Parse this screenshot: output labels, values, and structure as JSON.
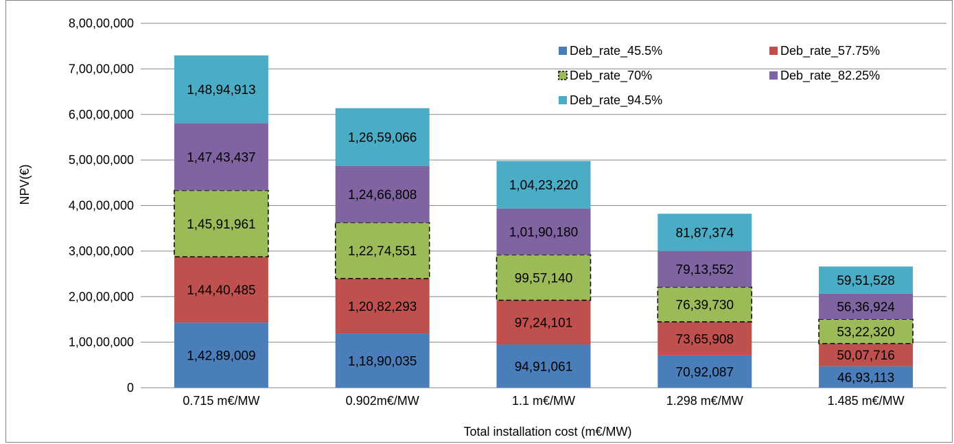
{
  "chart_data": {
    "type": "bar",
    "stacked": true,
    "title": "",
    "xlabel": "Total installation cost (m€/MW)",
    "ylabel": "NPV(€)",
    "ylim": [
      0,
      80000000
    ],
    "y_ticks": [
      {
        "value": 0,
        "label": "0"
      },
      {
        "value": 10000000,
        "label": "1,00,00,000"
      },
      {
        "value": 20000000,
        "label": "2,00,00,000"
      },
      {
        "value": 30000000,
        "label": "3,00,00,000"
      },
      {
        "value": 40000000,
        "label": "4,00,00,000"
      },
      {
        "value": 50000000,
        "label": "5,00,00,000"
      },
      {
        "value": 60000000,
        "label": "6,00,00,000"
      },
      {
        "value": 70000000,
        "label": "7,00,00,000"
      },
      {
        "value": 80000000,
        "label": "8,00,00,000"
      }
    ],
    "grid": true,
    "legend_position": "top-right",
    "categories": [
      "0.715 m€/MW",
      "0.902m€/MW",
      "1.1 m€/MW",
      "1.298 m€/MW",
      "1.485 m€/MW"
    ],
    "series": [
      {
        "name": "Deb_rate_45.5%",
        "color": "#4a7ebb",
        "values": [
          14289009,
          11890035,
          9491061,
          7092087,
          4693113
        ],
        "labels": [
          "1,42,89,009",
          "1,18,90,035",
          "94,91,061",
          "70,92,087",
          "46,93,113"
        ]
      },
      {
        "name": "Deb_rate_57.75%",
        "color": "#c0504d",
        "values": [
          14440485,
          12082293,
          9724101,
          7365908,
          5007716
        ],
        "labels": [
          "1,44,40,485",
          "1,20,82,293",
          "97,24,101",
          "73,65,908",
          "50,07,716"
        ]
      },
      {
        "name": "Deb_rate_70%",
        "color": "#9bbb59",
        "dashed_outline": true,
        "values": [
          14591961,
          12274551,
          9957140,
          7639730,
          5322320
        ],
        "labels": [
          "1,45,91,961",
          "1,22,74,551",
          "99,57,140",
          "76,39,730",
          "53,22,320"
        ]
      },
      {
        "name": "Deb_rate_82.25%",
        "color": "#8064a2",
        "values": [
          14743437,
          12466808,
          10190180,
          7913552,
          5636924
        ],
        "labels": [
          "1,47,43,437",
          "1,24,66,808",
          "1,01,90,180",
          "79,13,552",
          "56,36,924"
        ]
      },
      {
        "name": "Deb_rate_94.5%",
        "color": "#4bacc6",
        "values": [
          14894913,
          12659066,
          10423220,
          8187374,
          5951528
        ],
        "labels": [
          "1,48,94,913",
          "1,26,59,066",
          "1,04,23,220",
          "81,87,374",
          "59,51,528"
        ]
      }
    ]
  }
}
